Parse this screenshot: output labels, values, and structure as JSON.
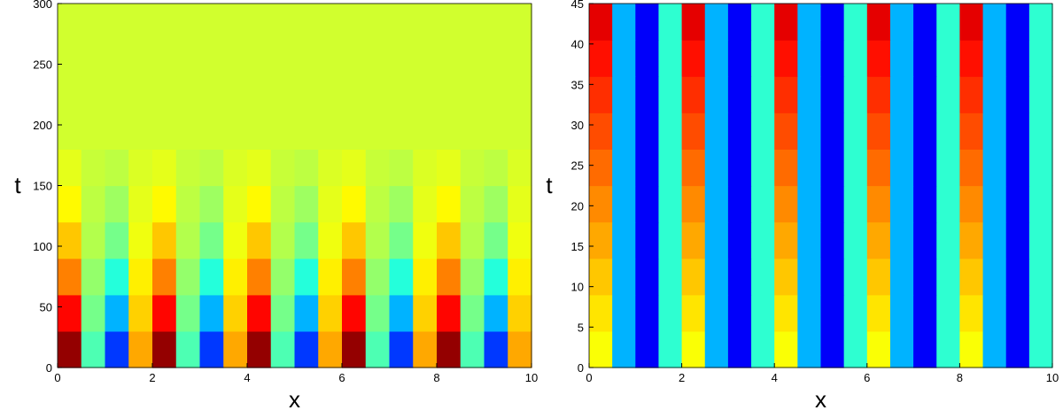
{
  "chart_data": [
    {
      "type": "heatmap",
      "x_label": "x",
      "y_label": "t",
      "colormap": "jet",
      "xlim": [
        0,
        10
      ],
      "ylim": [
        0,
        300
      ],
      "xticks": [
        0,
        2,
        4,
        6,
        8,
        10
      ],
      "yticks": [
        0,
        50,
        100,
        150,
        200,
        250,
        300
      ],
      "x": [
        0.25,
        0.75,
        1.25,
        1.75,
        2.25,
        2.75,
        3.25,
        3.75,
        4.25,
        4.75,
        5.25,
        5.75,
        6.25,
        6.75,
        7.25,
        7.75,
        8.25,
        8.75,
        9.25,
        9.75
      ],
      "y": [
        15,
        45,
        75,
        105,
        135,
        165,
        195,
        225,
        255,
        285
      ],
      "z": [
        [
          0.98,
          0.45,
          0.18,
          0.71,
          0.98,
          0.45,
          0.18,
          0.71,
          0.98,
          0.45,
          0.18,
          0.71,
          0.98,
          0.45,
          0.18,
          0.71,
          0.98,
          0.45,
          0.18,
          0.71
        ],
        [
          0.87,
          0.49,
          0.3,
          0.67,
          0.87,
          0.49,
          0.3,
          0.67,
          0.87,
          0.49,
          0.3,
          0.67,
          0.87,
          0.49,
          0.3,
          0.67,
          0.87,
          0.49,
          0.3,
          0.67
        ],
        [
          0.75,
          0.52,
          0.41,
          0.64,
          0.75,
          0.52,
          0.41,
          0.64,
          0.75,
          0.52,
          0.41,
          0.64,
          0.75,
          0.52,
          0.41,
          0.64,
          0.75,
          0.52,
          0.41,
          0.64
        ],
        [
          0.68,
          0.55,
          0.49,
          0.61,
          0.68,
          0.55,
          0.49,
          0.61,
          0.68,
          0.55,
          0.49,
          0.61,
          0.68,
          0.55,
          0.49,
          0.61,
          0.68,
          0.55,
          0.49,
          0.61
        ],
        [
          0.63,
          0.56,
          0.53,
          0.6,
          0.63,
          0.56,
          0.53,
          0.6,
          0.63,
          0.56,
          0.53,
          0.6,
          0.63,
          0.56,
          0.53,
          0.6,
          0.63,
          0.56,
          0.53,
          0.6
        ],
        [
          0.6,
          0.57,
          0.56,
          0.59,
          0.6,
          0.57,
          0.56,
          0.59,
          0.6,
          0.57,
          0.56,
          0.59,
          0.6,
          0.57,
          0.56,
          0.59,
          0.6,
          0.57,
          0.56,
          0.59
        ],
        [
          0.58,
          0.58,
          0.58,
          0.58,
          0.58,
          0.58,
          0.58,
          0.58,
          0.58,
          0.58,
          0.58,
          0.58,
          0.58,
          0.58,
          0.58,
          0.58,
          0.58,
          0.58,
          0.58,
          0.58
        ],
        [
          0.58,
          0.58,
          0.58,
          0.58,
          0.58,
          0.58,
          0.58,
          0.58,
          0.58,
          0.58,
          0.58,
          0.58,
          0.58,
          0.58,
          0.58,
          0.58,
          0.58,
          0.58,
          0.58,
          0.58
        ],
        [
          0.58,
          0.58,
          0.58,
          0.58,
          0.58,
          0.58,
          0.58,
          0.58,
          0.58,
          0.58,
          0.58,
          0.58,
          0.58,
          0.58,
          0.58,
          0.58,
          0.58,
          0.58,
          0.58,
          0.58
        ],
        [
          0.58,
          0.58,
          0.58,
          0.58,
          0.58,
          0.58,
          0.58,
          0.58,
          0.58,
          0.58,
          0.58,
          0.58,
          0.58,
          0.58,
          0.58,
          0.58,
          0.58,
          0.58,
          0.58,
          0.58
        ]
      ]
    },
    {
      "type": "heatmap",
      "x_label": "x",
      "y_label": "t",
      "colormap": "jet",
      "xlim": [
        0,
        10
      ],
      "ylim": [
        0,
        45
      ],
      "xticks": [
        0,
        2,
        4,
        6,
        8,
        10
      ],
      "yticks": [
        0,
        5,
        10,
        15,
        20,
        25,
        30,
        35,
        40,
        45
      ],
      "x": [
        0.25,
        0.75,
        1.25,
        1.75,
        2.25,
        2.75,
        3.25,
        3.75,
        4.25,
        4.75,
        5.25,
        5.75,
        6.25,
        6.75,
        7.25,
        7.75,
        8.25,
        8.75,
        9.25,
        9.75
      ],
      "y": [
        2.25,
        6.75,
        11.25,
        15.75,
        20.25,
        24.75,
        29.25,
        33.75,
        38.25,
        42.75
      ],
      "z": [
        [
          0.62,
          0.3,
          0.12,
          0.42,
          0.62,
          0.3,
          0.12,
          0.42,
          0.62,
          0.3,
          0.12,
          0.42,
          0.62,
          0.3,
          0.12,
          0.42,
          0.62,
          0.3,
          0.12,
          0.42
        ],
        [
          0.65,
          0.3,
          0.12,
          0.42,
          0.65,
          0.3,
          0.12,
          0.42,
          0.65,
          0.3,
          0.12,
          0.42,
          0.65,
          0.3,
          0.12,
          0.42,
          0.65,
          0.3,
          0.12,
          0.42
        ],
        [
          0.68,
          0.3,
          0.12,
          0.42,
          0.68,
          0.3,
          0.12,
          0.42,
          0.68,
          0.3,
          0.12,
          0.42,
          0.68,
          0.3,
          0.12,
          0.42,
          0.68,
          0.3,
          0.12,
          0.42
        ],
        [
          0.71,
          0.3,
          0.12,
          0.42,
          0.71,
          0.3,
          0.12,
          0.42,
          0.71,
          0.3,
          0.12,
          0.42,
          0.71,
          0.3,
          0.12,
          0.42,
          0.71,
          0.3,
          0.12,
          0.42
        ],
        [
          0.74,
          0.3,
          0.12,
          0.42,
          0.74,
          0.3,
          0.12,
          0.42,
          0.74,
          0.3,
          0.12,
          0.42,
          0.74,
          0.3,
          0.12,
          0.42,
          0.74,
          0.3,
          0.12,
          0.42
        ],
        [
          0.77,
          0.3,
          0.12,
          0.42,
          0.77,
          0.3,
          0.12,
          0.42,
          0.77,
          0.3,
          0.12,
          0.42,
          0.77,
          0.3,
          0.12,
          0.42,
          0.77,
          0.3,
          0.12,
          0.42
        ],
        [
          0.8,
          0.3,
          0.12,
          0.42,
          0.8,
          0.3,
          0.12,
          0.42,
          0.8,
          0.3,
          0.12,
          0.42,
          0.8,
          0.3,
          0.12,
          0.42,
          0.8,
          0.3,
          0.12,
          0.42
        ],
        [
          0.83,
          0.3,
          0.12,
          0.42,
          0.83,
          0.3,
          0.12,
          0.42,
          0.83,
          0.3,
          0.12,
          0.42,
          0.83,
          0.3,
          0.12,
          0.42,
          0.83,
          0.3,
          0.12,
          0.42
        ],
        [
          0.86,
          0.3,
          0.12,
          0.42,
          0.86,
          0.3,
          0.12,
          0.42,
          0.86,
          0.3,
          0.12,
          0.42,
          0.86,
          0.3,
          0.12,
          0.42,
          0.86,
          0.3,
          0.12,
          0.42
        ],
        [
          0.9,
          0.3,
          0.12,
          0.42,
          0.9,
          0.3,
          0.12,
          0.42,
          0.9,
          0.3,
          0.12,
          0.42,
          0.9,
          0.3,
          0.12,
          0.42,
          0.9,
          0.3,
          0.12,
          0.42
        ]
      ]
    }
  ]
}
